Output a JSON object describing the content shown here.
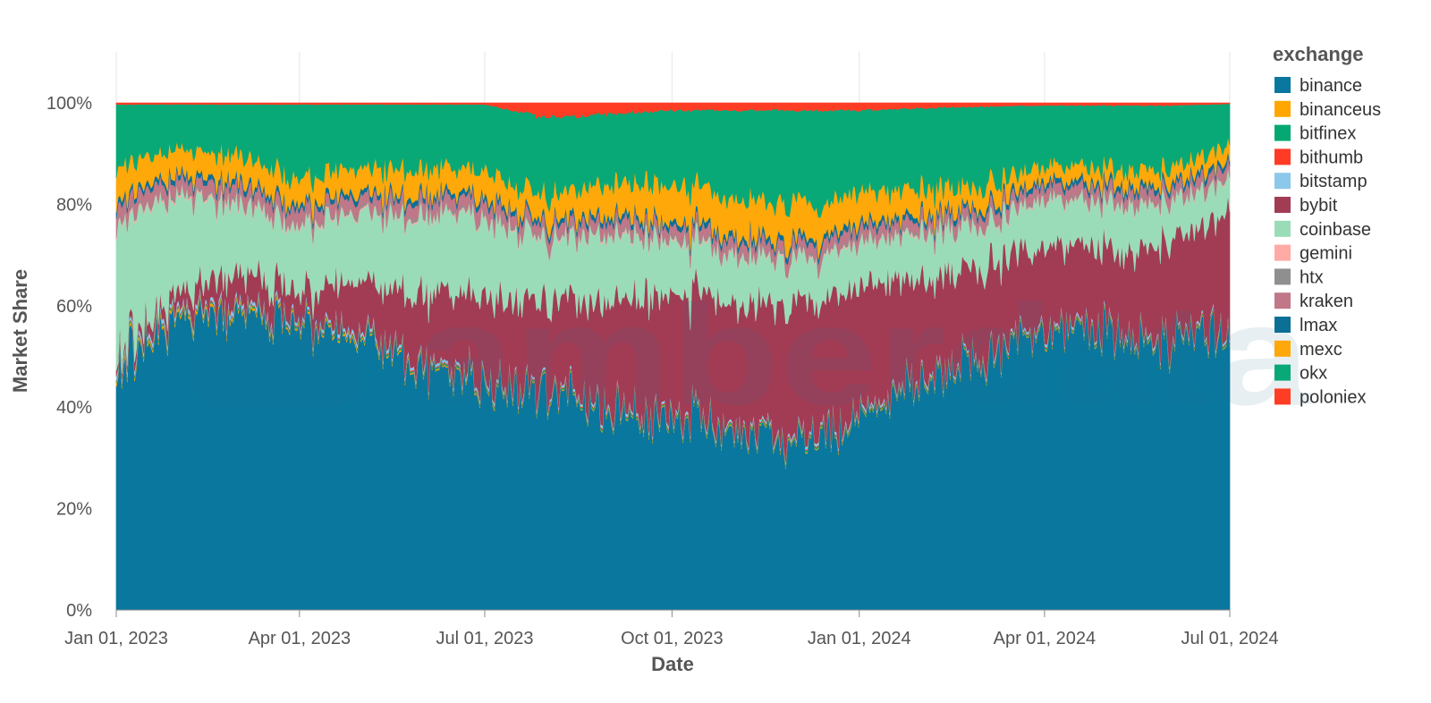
{
  "chart_data": {
    "type": "area",
    "stacked": "normalized",
    "xlabel": "Date",
    "ylabel": "Market Share",
    "x_range": [
      "2023-01-01",
      "2024-07-01"
    ],
    "x_ticks": [
      "Jan 01, 2023",
      "Apr 01, 2023",
      "Jul 01, 2023",
      "Oct 01, 2023",
      "Jan 01, 2024",
      "Apr 01, 2024",
      "Jul 01, 2024"
    ],
    "x_tick_dates": [
      "2023-01-01",
      "2023-04-01",
      "2023-07-01",
      "2023-10-01",
      "2024-01-01",
      "2024-04-01",
      "2024-07-01"
    ],
    "y_ticks": [
      "0%",
      "20%",
      "40%",
      "60%",
      "80%",
      "100%"
    ],
    "y_tick_values": [
      0,
      0.2,
      0.4,
      0.6,
      0.8,
      1.0
    ],
    "ylim": [
      0,
      1.0
    ],
    "grid": true,
    "legend_title": "exchange",
    "legend_position": "right",
    "watermark": "amberdata",
    "dates": [
      "2023-01-01",
      "2023-02-01",
      "2023-03-01",
      "2023-04-01",
      "2023-05-01",
      "2023-06-01",
      "2023-07-01",
      "2023-08-01",
      "2023-09-01",
      "2023-10-01",
      "2023-11-01",
      "2023-12-01",
      "2024-01-01",
      "2024-02-01",
      "2024-03-01",
      "2024-04-01",
      "2024-05-01",
      "2024-06-01",
      "2024-07-01"
    ],
    "series": [
      {
        "name": "binance",
        "color": "#0a779e",
        "values": [
          0.49,
          0.58,
          0.59,
          0.56,
          0.53,
          0.47,
          0.44,
          0.43,
          0.38,
          0.37,
          0.34,
          0.31,
          0.36,
          0.45,
          0.5,
          0.55,
          0.56,
          0.52,
          0.55
        ]
      },
      {
        "name": "binanceus",
        "color": "#ffa600",
        "values": [
          0.005,
          0.006,
          0.005,
          0.004,
          0.004,
          0.003,
          0.003,
          0.002,
          0.002,
          0.002,
          0.002,
          0.002,
          0.002,
          0.002,
          0.002,
          0.002,
          0.002,
          0.002,
          0.002
        ]
      },
      {
        "name": "bitfinex",
        "color": "#05a873",
        "values": [
          0.003,
          0.003,
          0.003,
          0.003,
          0.003,
          0.003,
          0.003,
          0.003,
          0.003,
          0.003,
          0.003,
          0.003,
          0.003,
          0.003,
          0.003,
          0.003,
          0.003,
          0.003,
          0.003
        ]
      },
      {
        "name": "bithumb",
        "color": "#ff3b26",
        "values": [
          0.002,
          0.002,
          0.002,
          0.002,
          0.002,
          0.002,
          0.002,
          0.002,
          0.002,
          0.002,
          0.002,
          0.002,
          0.002,
          0.002,
          0.002,
          0.002,
          0.002,
          0.002,
          0.002
        ]
      },
      {
        "name": "bitstamp",
        "color": "#8bc8ea",
        "values": [
          0.008,
          0.008,
          0.008,
          0.007,
          0.007,
          0.006,
          0.006,
          0.005,
          0.005,
          0.005,
          0.005,
          0.005,
          0.005,
          0.005,
          0.005,
          0.005,
          0.005,
          0.005,
          0.005
        ]
      },
      {
        "name": "bybit",
        "color": "#a23c55",
        "values": [
          0.01,
          0.03,
          0.06,
          0.05,
          0.1,
          0.13,
          0.16,
          0.16,
          0.2,
          0.22,
          0.23,
          0.25,
          0.24,
          0.18,
          0.17,
          0.16,
          0.14,
          0.18,
          0.22
        ]
      },
      {
        "name": "coinbase",
        "color": "#9bdcb8",
        "values": [
          0.25,
          0.19,
          0.13,
          0.13,
          0.14,
          0.15,
          0.15,
          0.12,
          0.13,
          0.1,
          0.09,
          0.08,
          0.08,
          0.09,
          0.08,
          0.09,
          0.09,
          0.08,
          0.06
        ]
      },
      {
        "name": "gemini",
        "color": "#ffaaa5",
        "values": [
          0.004,
          0.004,
          0.004,
          0.004,
          0.003,
          0.003,
          0.003,
          0.003,
          0.003,
          0.003,
          0.003,
          0.003,
          0.003,
          0.003,
          0.003,
          0.003,
          0.003,
          0.003,
          0.003
        ]
      },
      {
        "name": "htx",
        "color": "#8f8f8f",
        "values": [
          0.005,
          0.005,
          0.005,
          0.005,
          0.005,
          0.005,
          0.005,
          0.005,
          0.005,
          0.005,
          0.005,
          0.005,
          0.005,
          0.005,
          0.005,
          0.005,
          0.005,
          0.005,
          0.005
        ]
      },
      {
        "name": "kraken",
        "color": "#c07788",
        "values": [
          0.03,
          0.025,
          0.025,
          0.025,
          0.025,
          0.025,
          0.025,
          0.02,
          0.02,
          0.02,
          0.02,
          0.02,
          0.02,
          0.02,
          0.02,
          0.02,
          0.02,
          0.02,
          0.02
        ]
      },
      {
        "name": "lmax",
        "color": "#0c6f96",
        "values": [
          0.01,
          0.01,
          0.01,
          0.01,
          0.01,
          0.01,
          0.01,
          0.01,
          0.01,
          0.01,
          0.01,
          0.01,
          0.01,
          0.01,
          0.01,
          0.01,
          0.01,
          0.01,
          0.01
        ]
      },
      {
        "name": "mexc",
        "color": "#ffa80a",
        "values": [
          0.06,
          0.05,
          0.05,
          0.05,
          0.05,
          0.05,
          0.05,
          0.05,
          0.06,
          0.07,
          0.07,
          0.07,
          0.06,
          0.05,
          0.04,
          0.03,
          0.03,
          0.03,
          0.03
        ]
      },
      {
        "name": "okx",
        "color": "#09a877",
        "values": [
          0.12,
          0.086,
          0.098,
          0.148,
          0.126,
          0.127,
          0.122,
          0.16,
          0.13,
          0.14,
          0.17,
          0.18,
          0.16,
          0.16,
          0.16,
          0.12,
          0.12,
          0.12,
          0.08
        ]
      },
      {
        "name": "poloniex",
        "color": "#ff3d24",
        "values": [
          0.003,
          0.003,
          0.003,
          0.003,
          0.003,
          0.003,
          0.003,
          0.03,
          0.02,
          0.014,
          0.014,
          0.014,
          0.014,
          0.01,
          0.007,
          0.005,
          0.005,
          0.005,
          0.002
        ]
      }
    ]
  }
}
